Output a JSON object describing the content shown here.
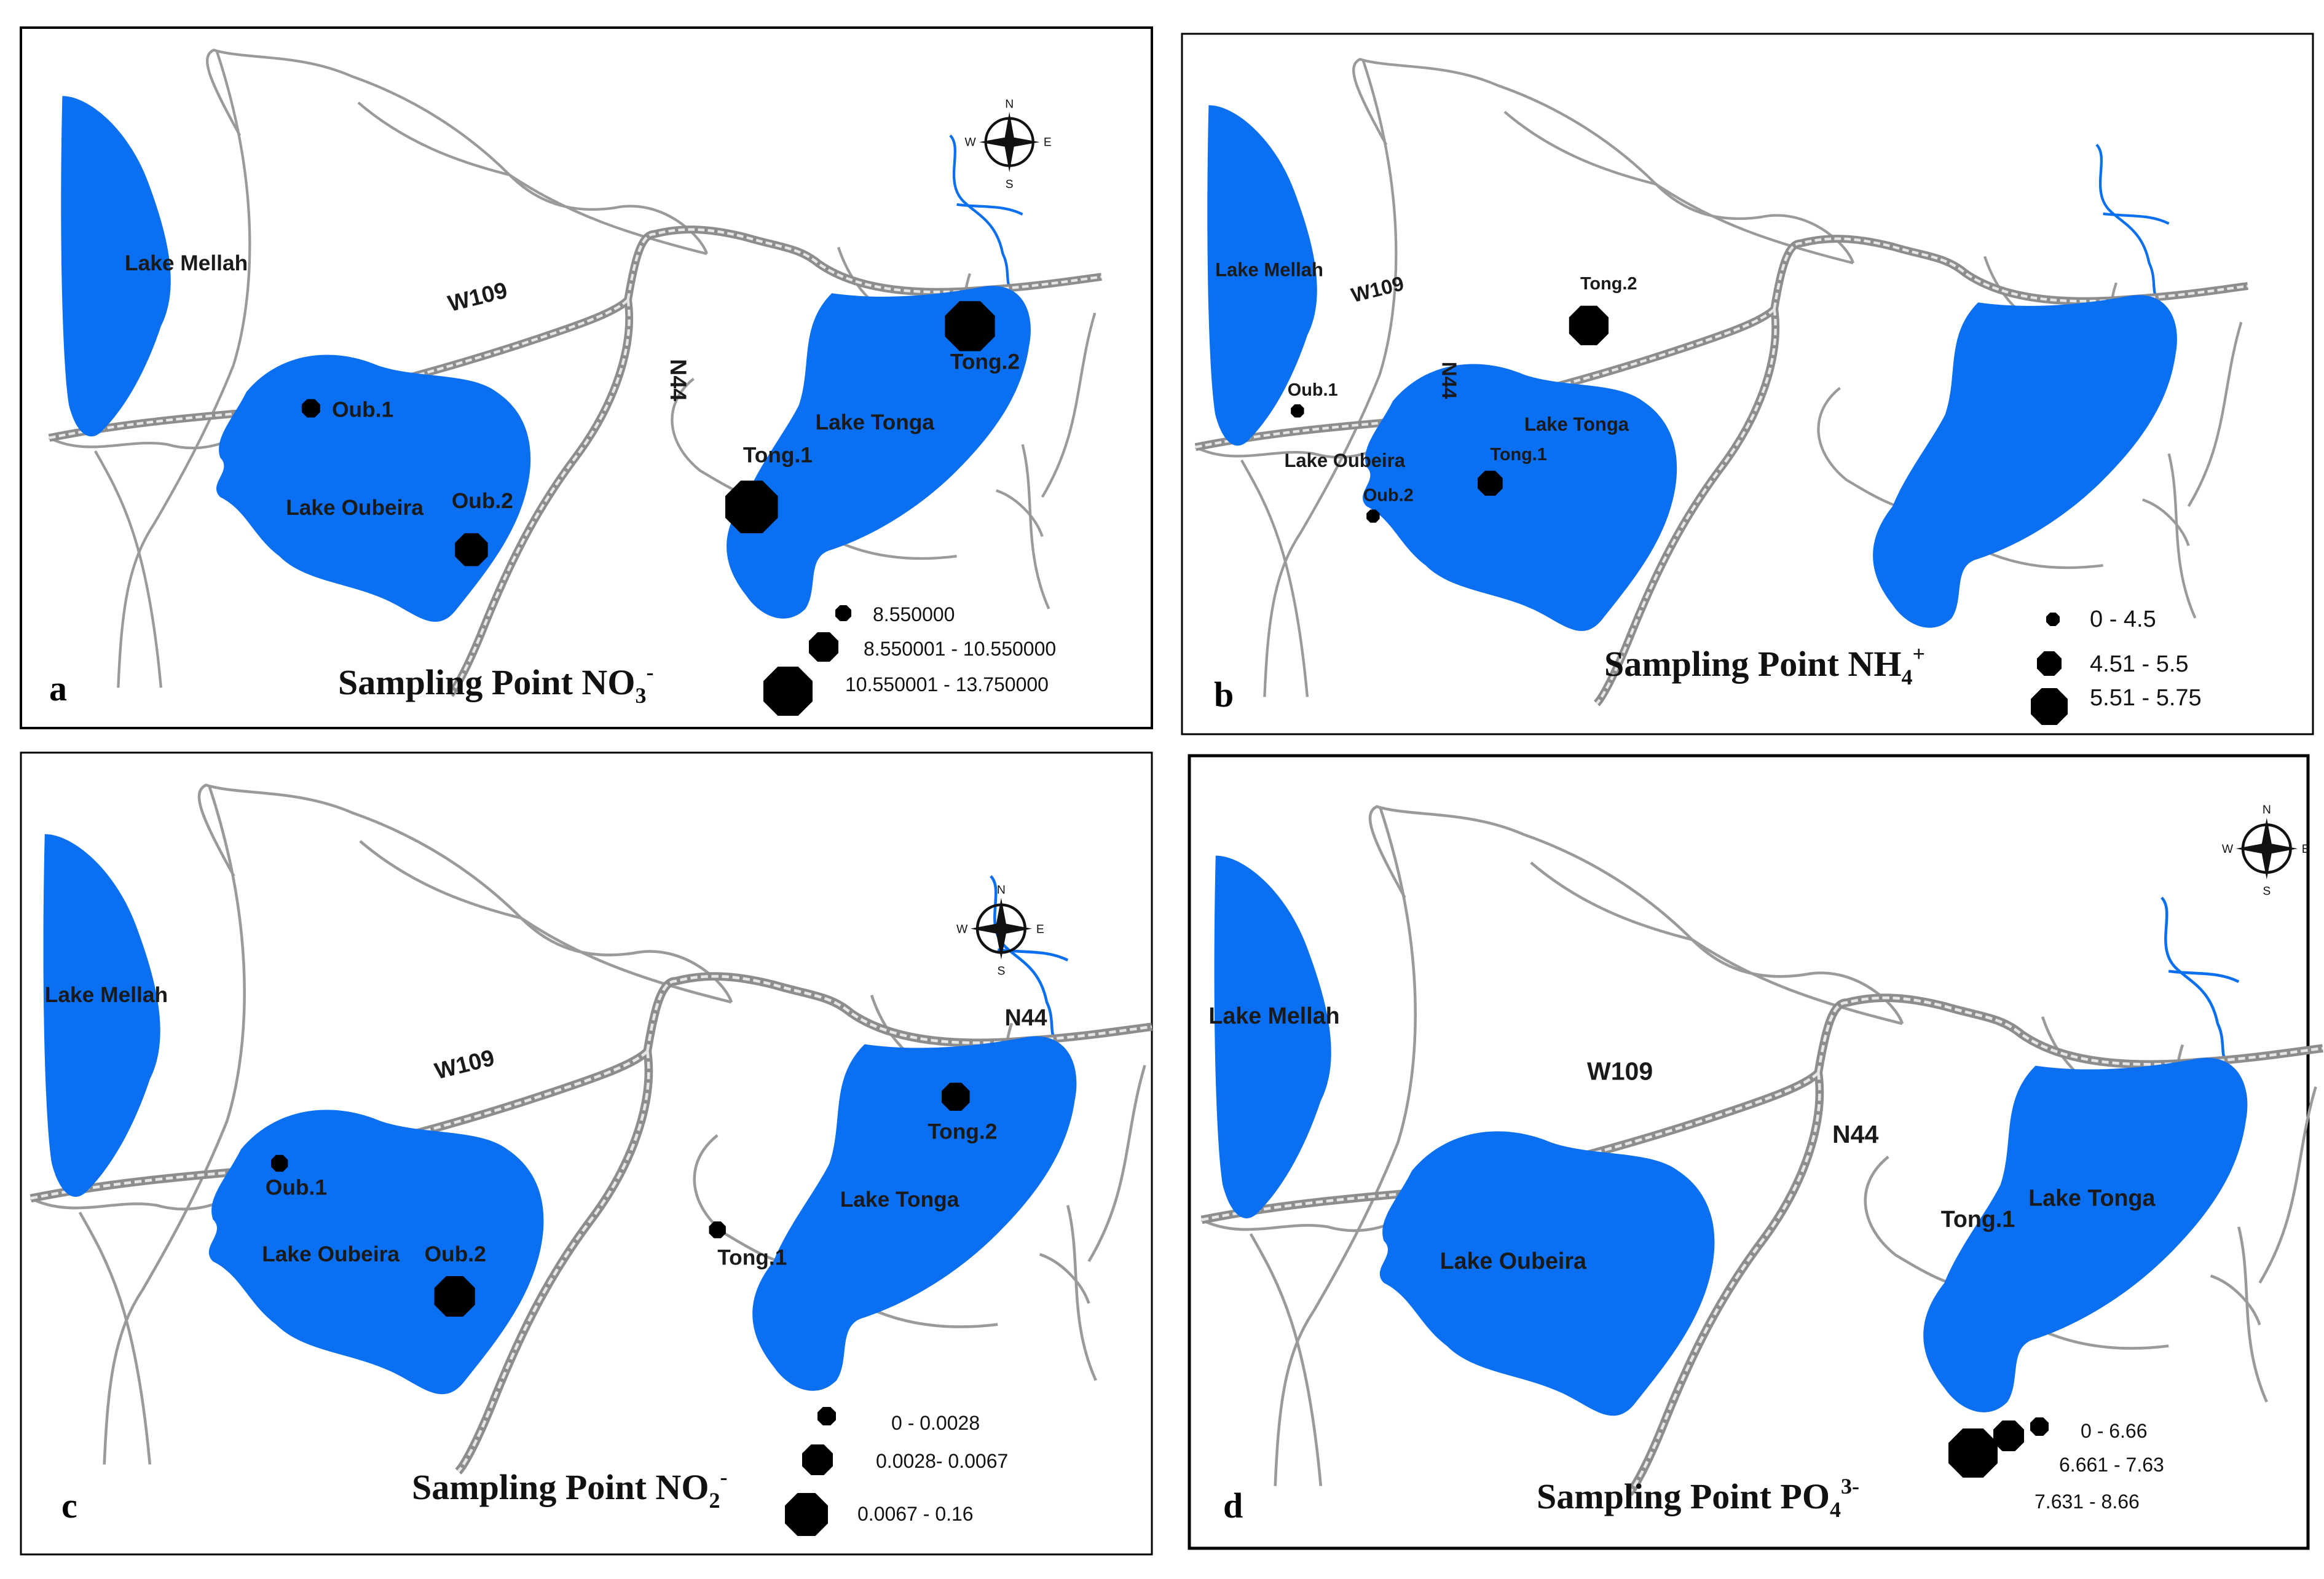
{
  "colors": {
    "water": "#0a6ff0",
    "river": "#9a9a9a",
    "road_outer": "#8d8d8d",
    "road_inner": "#e6e6e6",
    "marker": "#000000",
    "frame": "#000000"
  },
  "icons": {
    "compass": "compass-rose-icon",
    "marker": "octagon-marker"
  },
  "compass_labels": {
    "n": "N",
    "s": "S",
    "e": "E",
    "w": "W"
  },
  "panels": [
    {
      "letter": "a",
      "title_main": "Sampling Point NO",
      "title_sub": "3",
      "title_sup": "-",
      "lake_mellah": "Lake Mellah",
      "lake_oubeira": "Lake Oubeira",
      "lake_tonga": "Lake Tonga",
      "road_w109": "W109",
      "road_n44": "N44",
      "stations": [
        "Oub.1",
        "Oub.2",
        "Tong.1",
        "Tong.2"
      ],
      "station_classes": [
        1,
        2,
        3,
        3
      ],
      "legend": [
        "8.550000",
        "8.550001 - 10.550000",
        "10.550001 - 13.750000"
      ]
    },
    {
      "letter": "b",
      "title_main": "Sampling Point NH",
      "title_sub": "4",
      "title_sup": "+",
      "lake_mellah": "Lake Mellah",
      "lake_oubeira": "Lake Oubeira",
      "lake_tonga": "Lake Tonga",
      "road_w109": "W109",
      "road_n44": "N44",
      "stations": [
        "Oub.1",
        "Oub.2",
        "Tong.1",
        "Tong.2"
      ],
      "station_classes": [
        1,
        1,
        2,
        3
      ],
      "legend": [
        "0 - 4.5",
        "4.51 - 5.5",
        "5.51 - 5.75"
      ]
    },
    {
      "letter": "c",
      "title_main": "Sampling Point NO",
      "title_sub": "2",
      "title_sup": "-",
      "lake_mellah": "Lake Mellah",
      "lake_oubeira": "Lake Oubeira",
      "lake_tonga": "Lake Tonga",
      "road_w109": "W109",
      "road_n44": "N44",
      "road_n44_east": "N44",
      "stations": [
        "Oub.1",
        "Oub.2",
        "Tong.1",
        "Tong.2"
      ],
      "station_classes": [
        1,
        3,
        1,
        2
      ],
      "legend": [
        "0 - 0.0028",
        "0.0028- 0.0067",
        "0.0067 - 0.16"
      ]
    },
    {
      "letter": "d",
      "title_main": "Sampling Point PO",
      "title_sub": "4",
      "title_sup": "3-",
      "lake_mellah": "Lake Mellah",
      "lake_oubeira": "Lake Oubeira",
      "lake_tonga": "Lake Tonga",
      "road_w109": "W109",
      "road_n44": "N44",
      "stations": [
        "Tong.1"
      ],
      "station_classes": [],
      "legend": [
        "0 - 6.66",
        "6.661 - 7.63",
        "7.631 - 8.66"
      ]
    }
  ]
}
